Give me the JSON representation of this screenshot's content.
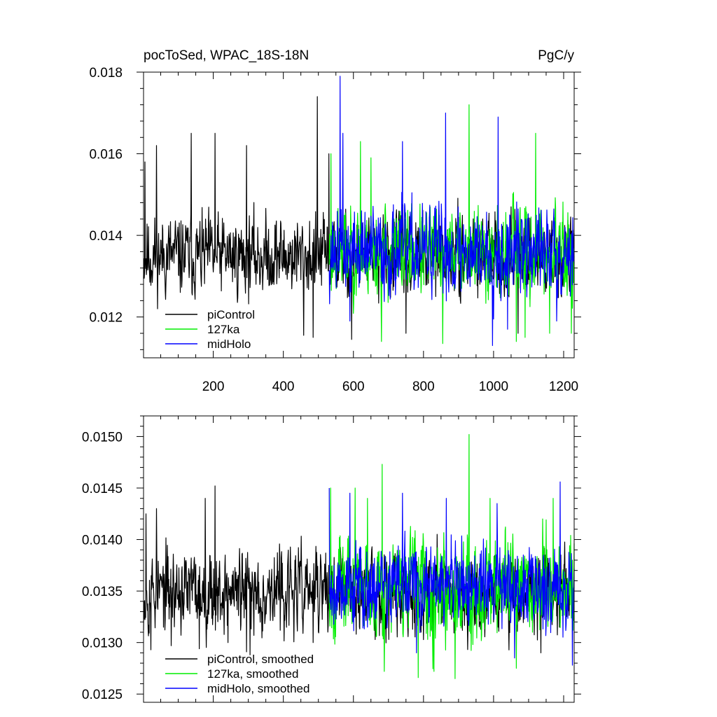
{
  "chart_data": [
    {
      "type": "line",
      "title_left": "pocToSed, WPAC_18S-18N",
      "title_right": "PgC/y",
      "xlabel": "",
      "ylabel": "",
      "xlim": [
        1,
        1230
      ],
      "ylim": [
        0.011,
        0.018
      ],
      "xticks": [
        200,
        400,
        600,
        800,
        1000,
        1200
      ],
      "xtick_labels": [
        "200",
        "400",
        "600",
        "800",
        "1000",
        "1200"
      ],
      "yticks": [
        0.012,
        0.014,
        0.016,
        0.018
      ],
      "ytick_labels": [
        "0.012",
        "0.014",
        "0.016",
        "0.018"
      ],
      "legend_position": "bottom-left",
      "grid": false,
      "series": [
        {
          "name": "piControl",
          "color": "#000000",
          "x_start": 1,
          "x_end": 1230,
          "mean": 0.0135,
          "amplitude": 0.00085,
          "seed": 11,
          "spikes": [
            [
              5,
              0.0158
            ],
            [
              38,
              0.0162
            ],
            [
              137,
              0.0165
            ],
            [
              205,
              0.0165
            ],
            [
              295,
              0.0162
            ],
            [
              497,
              0.0174
            ],
            [
              530,
              0.016
            ],
            [
              595,
              0.01145
            ],
            [
              458,
              0.01155
            ],
            [
              485,
              0.0115
            ],
            [
              750,
              0.0116
            ],
            [
              1070,
              0.0116
            ]
          ]
        },
        {
          "name": "127ka",
          "color": "#00ee00",
          "x_start": 531,
          "x_end": 1230,
          "mean": 0.0136,
          "amplitude": 0.00095,
          "seed": 23,
          "spikes": [
            [
              536,
              0.016
            ],
            [
              620,
              0.0163
            ],
            [
              650,
              0.0159
            ],
            [
              930,
              0.0172
            ],
            [
              1120,
              0.0165
            ],
            [
              680,
              0.0114
            ],
            [
              855,
              0.01135
            ],
            [
              1065,
              0.0114
            ],
            [
              1090,
              0.0115
            ],
            [
              1160,
              0.0116
            ],
            [
              1222,
              0.0116
            ]
          ]
        },
        {
          "name": "midHolo",
          "color": "#0000ff",
          "x_start": 531,
          "x_end": 1230,
          "mean": 0.0136,
          "amplitude": 0.00095,
          "seed": 37,
          "spikes": [
            [
              562,
              0.0179
            ],
            [
              570,
              0.0165
            ],
            [
              740,
              0.0163
            ],
            [
              863,
              0.017
            ],
            [
              1013,
              0.0169
            ],
            [
              997,
              0.0113
            ],
            [
              590,
              0.0119
            ],
            [
              1180,
              0.0119
            ],
            [
              1040,
              0.0117
            ]
          ]
        }
      ]
    },
    {
      "type": "line",
      "title_left": "",
      "title_right": "",
      "xlabel": "",
      "ylabel": "",
      "xlim": [
        1,
        1230
      ],
      "ylim": [
        0.01242,
        0.0152
      ],
      "xticks": [
        200,
        400,
        600,
        800,
        1000,
        1200
      ],
      "xtick_labels": [],
      "yticks": [
        0.0125,
        0.013,
        0.0135,
        0.014,
        0.0145,
        0.015
      ],
      "ytick_labels": [
        "0.0125",
        "0.0130",
        "0.0135",
        "0.0140",
        "0.0145",
        "0.0150"
      ],
      "legend_position": "bottom-left",
      "grid": false,
      "series": [
        {
          "name": "piControl, smoothed",
          "color": "#000000",
          "x_start": 1,
          "x_end": 1230,
          "mean": 0.0135,
          "amplitude": 0.00035,
          "seed": 53,
          "spikes": [
            [
              8,
              0.01425
            ],
            [
              38,
              0.0143
            ],
            [
              177,
              0.0144
            ],
            [
              205,
              0.01452
            ],
            [
              22,
              0.01293
            ],
            [
              80,
              0.01297
            ],
            [
              160,
              0.01294
            ],
            [
              242,
              0.013
            ],
            [
              295,
              0.01291
            ],
            [
              305,
              0.01288
            ],
            [
              485,
              0.013
            ],
            [
              530,
              0.01375
            ],
            [
              1130,
              0.01345
            ],
            [
              1135,
              0.0129
            ]
          ]
        },
        {
          "name": "127ka, smoothed",
          "color": "#00ee00",
          "x_start": 531,
          "x_end": 1230,
          "mean": 0.01355,
          "amplitude": 0.00042,
          "seed": 67,
          "spikes": [
            [
              535,
              0.0145
            ],
            [
              605,
              0.0145
            ],
            [
              640,
              0.0144
            ],
            [
              682,
              0.01473
            ],
            [
              930,
              0.01502
            ],
            [
              990,
              0.0144
            ],
            [
              1140,
              0.0142
            ],
            [
              1170,
              0.0144
            ],
            [
              688,
              0.01272
            ],
            [
              785,
              0.01266
            ],
            [
              830,
              0.01272
            ],
            [
              890,
              0.01265
            ],
            [
              1065,
              0.01275
            ],
            [
              1225,
              0.0138
            ]
          ]
        },
        {
          "name": "midHolo, smoothed",
          "color": "#0000ff",
          "x_start": 531,
          "x_end": 1230,
          "mean": 0.01355,
          "amplitude": 0.00036,
          "seed": 79,
          "spikes": [
            [
              531,
              0.0145
            ],
            [
              590,
              0.01445
            ],
            [
              740,
              0.01445
            ],
            [
              865,
              0.0144
            ],
            [
              1010,
              0.01435
            ],
            [
              1190,
              0.01456
            ],
            [
              1225,
              0.01278
            ],
            [
              780,
              0.0129
            ],
            [
              1060,
              0.01285
            ]
          ]
        }
      ]
    }
  ]
}
